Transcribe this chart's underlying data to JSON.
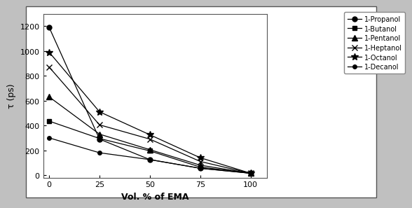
{
  "title": "",
  "xlabel": "Vol. % of EMA",
  "ylabel": "τ (ps)",
  "xlim": [
    -3,
    108
  ],
  "ylim": [
    -20,
    1300
  ],
  "yticks": [
    0,
    200,
    400,
    600,
    800,
    1000,
    1200
  ],
  "xticks": [
    0,
    25,
    50,
    75,
    100
  ],
  "series": [
    {
      "label": "1-Propanol",
      "x": [
        0,
        25,
        50,
        75,
        100
      ],
      "y": [
        1190,
        290,
        125,
        55,
        15
      ],
      "marker": "o",
      "markersize": 5
    },
    {
      "label": "1-Butanol",
      "x": [
        0,
        25,
        50,
        75,
        100
      ],
      "y": [
        435,
        295,
        195,
        65,
        15
      ],
      "marker": "s",
      "markersize": 5
    },
    {
      "label": "1-Pentanol",
      "x": [
        0,
        25,
        50,
        75,
        100
      ],
      "y": [
        630,
        330,
        205,
        80,
        15
      ],
      "marker": "^",
      "markersize": 6
    },
    {
      "label": "1-Heptanol",
      "x": [
        0,
        25,
        50,
        75,
        100
      ],
      "y": [
        870,
        405,
        290,
        110,
        15
      ],
      "marker": "x",
      "markersize": 6
    },
    {
      "label": "1-Octanol",
      "x": [
        0,
        25,
        50,
        75,
        100
      ],
      "y": [
        990,
        510,
        325,
        140,
        15
      ],
      "marker": "*",
      "markersize": 7
    },
    {
      "label": "1-Decanol",
      "x": [
        0,
        25,
        50,
        75,
        100
      ],
      "y": [
        300,
        180,
        125,
        55,
        15
      ],
      "marker": "o",
      "markersize": 4
    }
  ],
  "outer_background": "#c0c0c0",
  "inner_background": "#ffffff",
  "border_color": "#888888",
  "line_color": "#000000",
  "legend_fontsize": 7,
  "axis_label_fontsize": 9,
  "tick_fontsize": 8
}
